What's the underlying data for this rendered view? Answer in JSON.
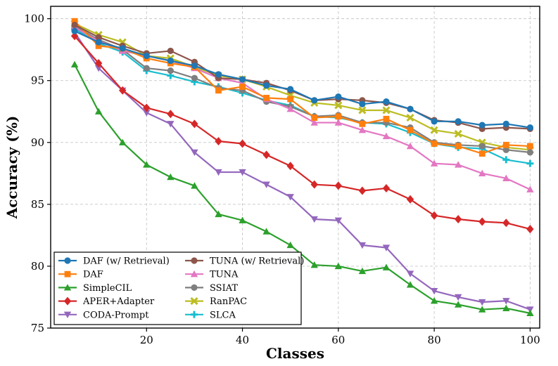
{
  "chart_data": {
    "type": "line",
    "title": "",
    "xlabel": "Classes",
    "ylabel": "Accuracy (%)",
    "xlim": [
      0,
      102
    ],
    "ylim": [
      75,
      101
    ],
    "xticks": [
      20,
      40,
      60,
      80,
      100
    ],
    "yticks": [
      75,
      80,
      85,
      90,
      95,
      100
    ],
    "grid": true,
    "legend_location": "lower-left",
    "x": [
      5,
      10,
      15,
      20,
      25,
      30,
      35,
      40,
      45,
      50,
      55,
      60,
      65,
      70,
      75,
      80,
      85,
      90,
      95,
      100
    ],
    "series": [
      {
        "name": "DAF (w/ Retrieval)",
        "color": "#1f77b4",
        "marker": "circle",
        "values": [
          99.0,
          98.1,
          97.6,
          97.0,
          96.6,
          96.2,
          95.5,
          95.1,
          94.6,
          94.3,
          93.4,
          93.7,
          93.1,
          93.3,
          92.7,
          91.7,
          91.7,
          91.4,
          91.5,
          91.2
        ]
      },
      {
        "name": "TUNA (w/ Retrieval)",
        "color": "#8c564b",
        "marker": "circle",
        "values": [
          99.5,
          98.5,
          97.8,
          97.2,
          97.4,
          96.5,
          95.2,
          95.1,
          94.8,
          94.2,
          93.4,
          93.5,
          93.4,
          93.2,
          92.7,
          91.8,
          91.6,
          91.1,
          91.2,
          91.1
        ]
      },
      {
        "name": "DAF",
        "color": "#ff7f0e",
        "marker": "square",
        "values": [
          99.8,
          97.8,
          97.6,
          96.8,
          96.4,
          96.1,
          94.2,
          94.5,
          93.6,
          93.5,
          92.0,
          92.1,
          91.5,
          91.9,
          91.0,
          89.9,
          89.7,
          89.1,
          89.8,
          89.7
        ]
      },
      {
        "name": "TUNA",
        "color": "#e377c2",
        "marker": "triangle-up",
        "values": [
          99.3,
          98.2,
          97.4,
          97.0,
          96.6,
          96.0,
          95.2,
          94.8,
          93.5,
          92.7,
          91.6,
          91.6,
          91.0,
          90.5,
          89.7,
          88.3,
          88.2,
          87.5,
          87.1,
          86.2
        ]
      },
      {
        "name": "SimpleCIL",
        "color": "#2ca02c",
        "marker": "triangle-up",
        "values": [
          96.3,
          92.5,
          90.0,
          88.2,
          87.2,
          86.5,
          84.2,
          83.7,
          82.8,
          81.7,
          80.1,
          80.0,
          79.6,
          79.9,
          78.5,
          77.2,
          76.9,
          76.5,
          76.6,
          76.2
        ]
      },
      {
        "name": "SSIAT",
        "color": "#7f7f7f",
        "marker": "circle",
        "values": [
          99.4,
          98.3,
          97.5,
          96.0,
          95.8,
          95.2,
          94.4,
          94.2,
          93.3,
          92.9,
          92.1,
          92.2,
          91.6,
          91.6,
          91.2,
          90.0,
          89.8,
          89.7,
          89.4,
          89.2
        ]
      },
      {
        "name": "APER+Adapter",
        "color": "#d62728",
        "marker": "diamond",
        "values": [
          98.6,
          96.4,
          94.2,
          92.8,
          92.3,
          91.5,
          90.1,
          89.9,
          89.0,
          88.1,
          86.6,
          86.5,
          86.1,
          86.3,
          85.4,
          84.1,
          83.8,
          83.6,
          83.5,
          83.0
        ]
      },
      {
        "name": "RanPAC",
        "color": "#bcbd22",
        "marker": "x",
        "values": [
          99.6,
          98.7,
          98.1,
          97.0,
          96.8,
          96.1,
          95.4,
          95.1,
          94.5,
          93.8,
          93.2,
          93.0,
          92.6,
          92.6,
          92.0,
          91.0,
          90.7,
          90.0,
          89.6,
          89.4
        ]
      },
      {
        "name": "CODA-Prompt",
        "color": "#9467bd",
        "marker": "triangle-down",
        "values": [
          98.9,
          96.0,
          94.2,
          92.4,
          91.5,
          89.2,
          87.6,
          87.6,
          86.6,
          85.6,
          83.8,
          83.7,
          81.7,
          81.5,
          79.4,
          78.0,
          77.5,
          77.1,
          77.2,
          76.5
        ]
      },
      {
        "name": "SLCA",
        "color": "#17becf",
        "marker": "plus",
        "values": [
          99.2,
          98.0,
          97.3,
          95.8,
          95.4,
          94.9,
          94.5,
          94.0,
          93.4,
          93.0,
          92.1,
          92.0,
          91.6,
          91.5,
          90.8,
          89.9,
          89.6,
          89.5,
          88.6,
          88.3
        ]
      }
    ]
  }
}
